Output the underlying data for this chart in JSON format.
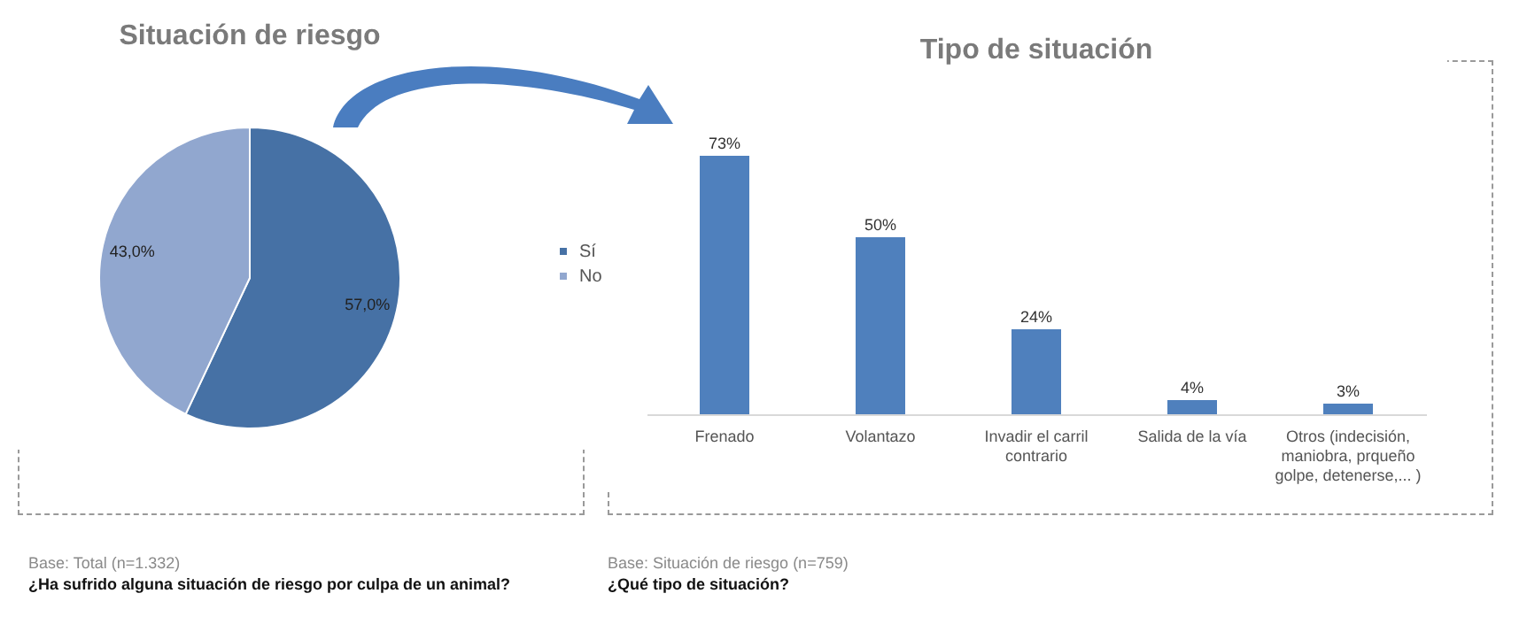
{
  "chart_data": [
    {
      "type": "pie",
      "title": "Situación de riesgo",
      "categories": [
        "Sí",
        "No"
      ],
      "values": [
        57.0,
        43.0
      ],
      "colors": [
        "#4671a5",
        "#91a7cf"
      ],
      "value_labels": [
        "57,0%",
        "43,0%"
      ],
      "legend": "right",
      "annotations": [
        "Base: Total (n=1.332)",
        "¿Ha sufrido alguna situación de riesgo por culpa de un animal?"
      ]
    },
    {
      "type": "bar",
      "title": "Tipo de situación",
      "categories": [
        "Frenado",
        "Volantazo",
        "Invadir el carril contrario",
        "Salida de la vía",
        "Otros (indecisión, maniobra, prqueño golpe, detenerse,... )"
      ],
      "values": [
        73,
        50,
        24,
        4,
        3
      ],
      "colors": [
        "#4f80bd",
        "#4f80bd",
        "#4f80bd",
        "#4f80bd",
        "#4f80bd"
      ],
      "value_labels": [
        "73%",
        "50%",
        "24%",
        "4%",
        "3%"
      ],
      "annotations": [
        "Base: Situación de riesgo (n=759)",
        "¿Qué tipo de situación?"
      ]
    }
  ]
}
